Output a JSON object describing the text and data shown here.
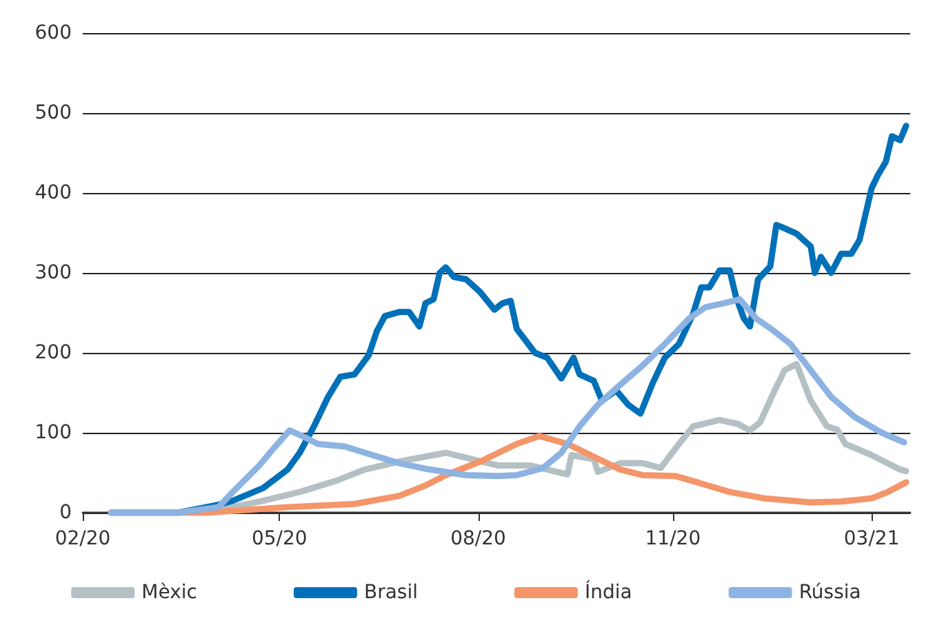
{
  "chart_data": {
    "type": "line",
    "xlim": [
      "2020-02-01",
      "2021-03-15"
    ],
    "xticks": [
      {
        "value": "2020-02-01",
        "label": "02/20"
      },
      {
        "value": "2020-05-08",
        "label": "05/20"
      },
      {
        "value": "2020-08-14",
        "label": "08/20"
      },
      {
        "value": "2020-11-18",
        "label": "11/20"
      },
      {
        "value": "2021-02-24",
        "label": "03/21"
      }
    ],
    "ylim": [
      0,
      600
    ],
    "yticks": [
      0,
      100,
      200,
      300,
      400,
      500,
      600
    ],
    "grid": "y",
    "legend": "bottom",
    "marker": "none",
    "line_style": "solid",
    "series": [
      {
        "name": "Mèxic",
        "color": "#b4c0c3",
        "x": [
          "2020-02-15",
          "2020-04-02",
          "2020-04-30",
          "2020-05-18",
          "2020-06-05",
          "2020-06-19",
          "2020-07-06",
          "2020-07-29",
          "2020-08-11",
          "2020-08-24",
          "2020-09-09",
          "2020-09-22",
          "2020-09-27",
          "2020-09-29",
          "2020-10-10",
          "2020-10-12",
          "2020-10-23",
          "2020-11-03",
          "2020-11-12",
          "2020-11-21",
          "2020-11-28",
          "2020-12-11",
          "2020-12-20",
          "2020-12-26",
          "2020-12-31",
          "2021-01-07",
          "2021-01-12",
          "2021-01-18",
          "2021-01-25",
          "2021-02-02",
          "2021-02-07",
          "2021-02-11",
          "2021-02-24",
          "2021-03-10",
          "2021-03-13"
        ],
        "values": [
          0,
          0,
          15,
          26,
          40,
          54,
          64,
          75,
          67,
          59,
          59,
          51,
          48,
          72,
          67,
          51,
          62,
          62,
          56,
          86,
          108,
          116,
          111,
          103,
          113,
          152,
          178,
          186,
          140,
          108,
          104,
          86,
          72,
          54,
          52
        ]
      },
      {
        "name": "Brasil",
        "color": "#0070b8",
        "x": [
          "2020-02-15",
          "2020-03-19",
          "2020-04-08",
          "2020-04-15",
          "2020-04-30",
          "2020-05-12",
          "2020-05-18",
          "2020-05-25",
          "2020-06-01",
          "2020-06-07",
          "2020-06-14",
          "2020-06-21",
          "2020-06-25",
          "2020-06-29",
          "2020-07-06",
          "2020-07-11",
          "2020-07-16",
          "2020-07-19",
          "2020-07-23",
          "2020-07-26",
          "2020-07-29",
          "2020-08-02",
          "2020-08-08",
          "2020-08-15",
          "2020-08-22",
          "2020-08-26",
          "2020-08-30",
          "2020-09-02",
          "2020-09-11",
          "2020-09-17",
          "2020-09-24",
          "2020-09-30",
          "2020-10-03",
          "2020-10-10",
          "2020-10-14",
          "2020-10-21",
          "2020-10-27",
          "2020-11-02",
          "2020-11-08",
          "2020-11-14",
          "2020-11-21",
          "2020-11-28",
          "2020-12-02",
          "2020-12-06",
          "2020-12-11",
          "2020-12-16",
          "2020-12-19",
          "2020-12-23",
          "2020-12-26",
          "2020-12-30",
          "2021-01-05",
          "2021-01-08",
          "2021-01-11",
          "2021-01-18",
          "2021-01-25",
          "2021-01-27",
          "2021-01-30",
          "2021-02-04",
          "2021-02-09",
          "2021-02-14",
          "2021-02-18",
          "2021-02-24",
          "2021-02-27",
          "2021-03-03",
          "2021-03-06",
          "2021-03-10",
          "2021-03-13"
        ],
        "values": [
          0,
          0,
          10,
          15,
          31,
          54,
          75,
          108,
          145,
          170,
          173,
          197,
          227,
          246,
          251,
          251,
          233,
          262,
          267,
          300,
          307,
          295,
          292,
          276,
          254,
          262,
          265,
          230,
          200,
          194,
          168,
          194,
          173,
          165,
          140,
          153,
          135,
          124,
          162,
          194,
          211,
          249,
          282,
          282,
          303,
          303,
          271,
          243,
          233,
          292,
          308,
          360,
          357,
          349,
          333,
          300,
          320,
          300,
          324,
          324,
          341,
          406,
          422,
          439,
          471,
          466,
          484
        ]
      },
      {
        "name": "Índia",
        "color": "#f4956a",
        "x": [
          "2020-02-15",
          "2020-04-02",
          "2020-05-12",
          "2020-06-14",
          "2020-07-06",
          "2020-07-19",
          "2020-07-29",
          "2020-08-15",
          "2020-09-02",
          "2020-09-13",
          "2020-09-27",
          "2020-10-10",
          "2020-10-23",
          "2020-11-03",
          "2020-11-19",
          "2020-11-30",
          "2020-12-16",
          "2021-01-02",
          "2021-01-25",
          "2021-02-09",
          "2021-02-24",
          "2021-03-04",
          "2021-03-13"
        ],
        "values": [
          0,
          0,
          7,
          11,
          21,
          34,
          47,
          64,
          86,
          96,
          86,
          70,
          54,
          47,
          46,
          38,
          26,
          18,
          13,
          14,
          18,
          26,
          38
        ]
      },
      {
        "name": "Rússia",
        "color": "#8db3e2",
        "x": [
          "2020-02-15",
          "2020-03-19",
          "2020-04-08",
          "2020-04-15",
          "2020-04-28",
          "2020-05-05",
          "2020-05-13",
          "2020-05-20",
          "2020-05-27",
          "2020-06-09",
          "2020-06-23",
          "2020-07-06",
          "2020-07-19",
          "2020-08-08",
          "2020-08-24",
          "2020-09-02",
          "2020-09-15",
          "2020-09-24",
          "2020-10-03",
          "2020-10-12",
          "2020-10-23",
          "2020-11-03",
          "2020-11-14",
          "2020-11-26",
          "2020-12-04",
          "2020-12-13",
          "2020-12-21",
          "2020-12-29",
          "2021-01-07",
          "2021-01-15",
          "2021-01-25",
          "2021-02-04",
          "2021-02-16",
          "2021-03-01",
          "2021-03-12"
        ],
        "values": [
          0,
          0,
          7,
          26,
          59,
          80,
          103,
          95,
          86,
          83,
          72,
          62,
          55,
          47,
          46,
          47,
          56,
          75,
          108,
          135,
          160,
          184,
          211,
          243,
          257,
          262,
          267,
          243,
          227,
          211,
          178,
          145,
          119,
          100,
          88
        ]
      }
    ]
  }
}
